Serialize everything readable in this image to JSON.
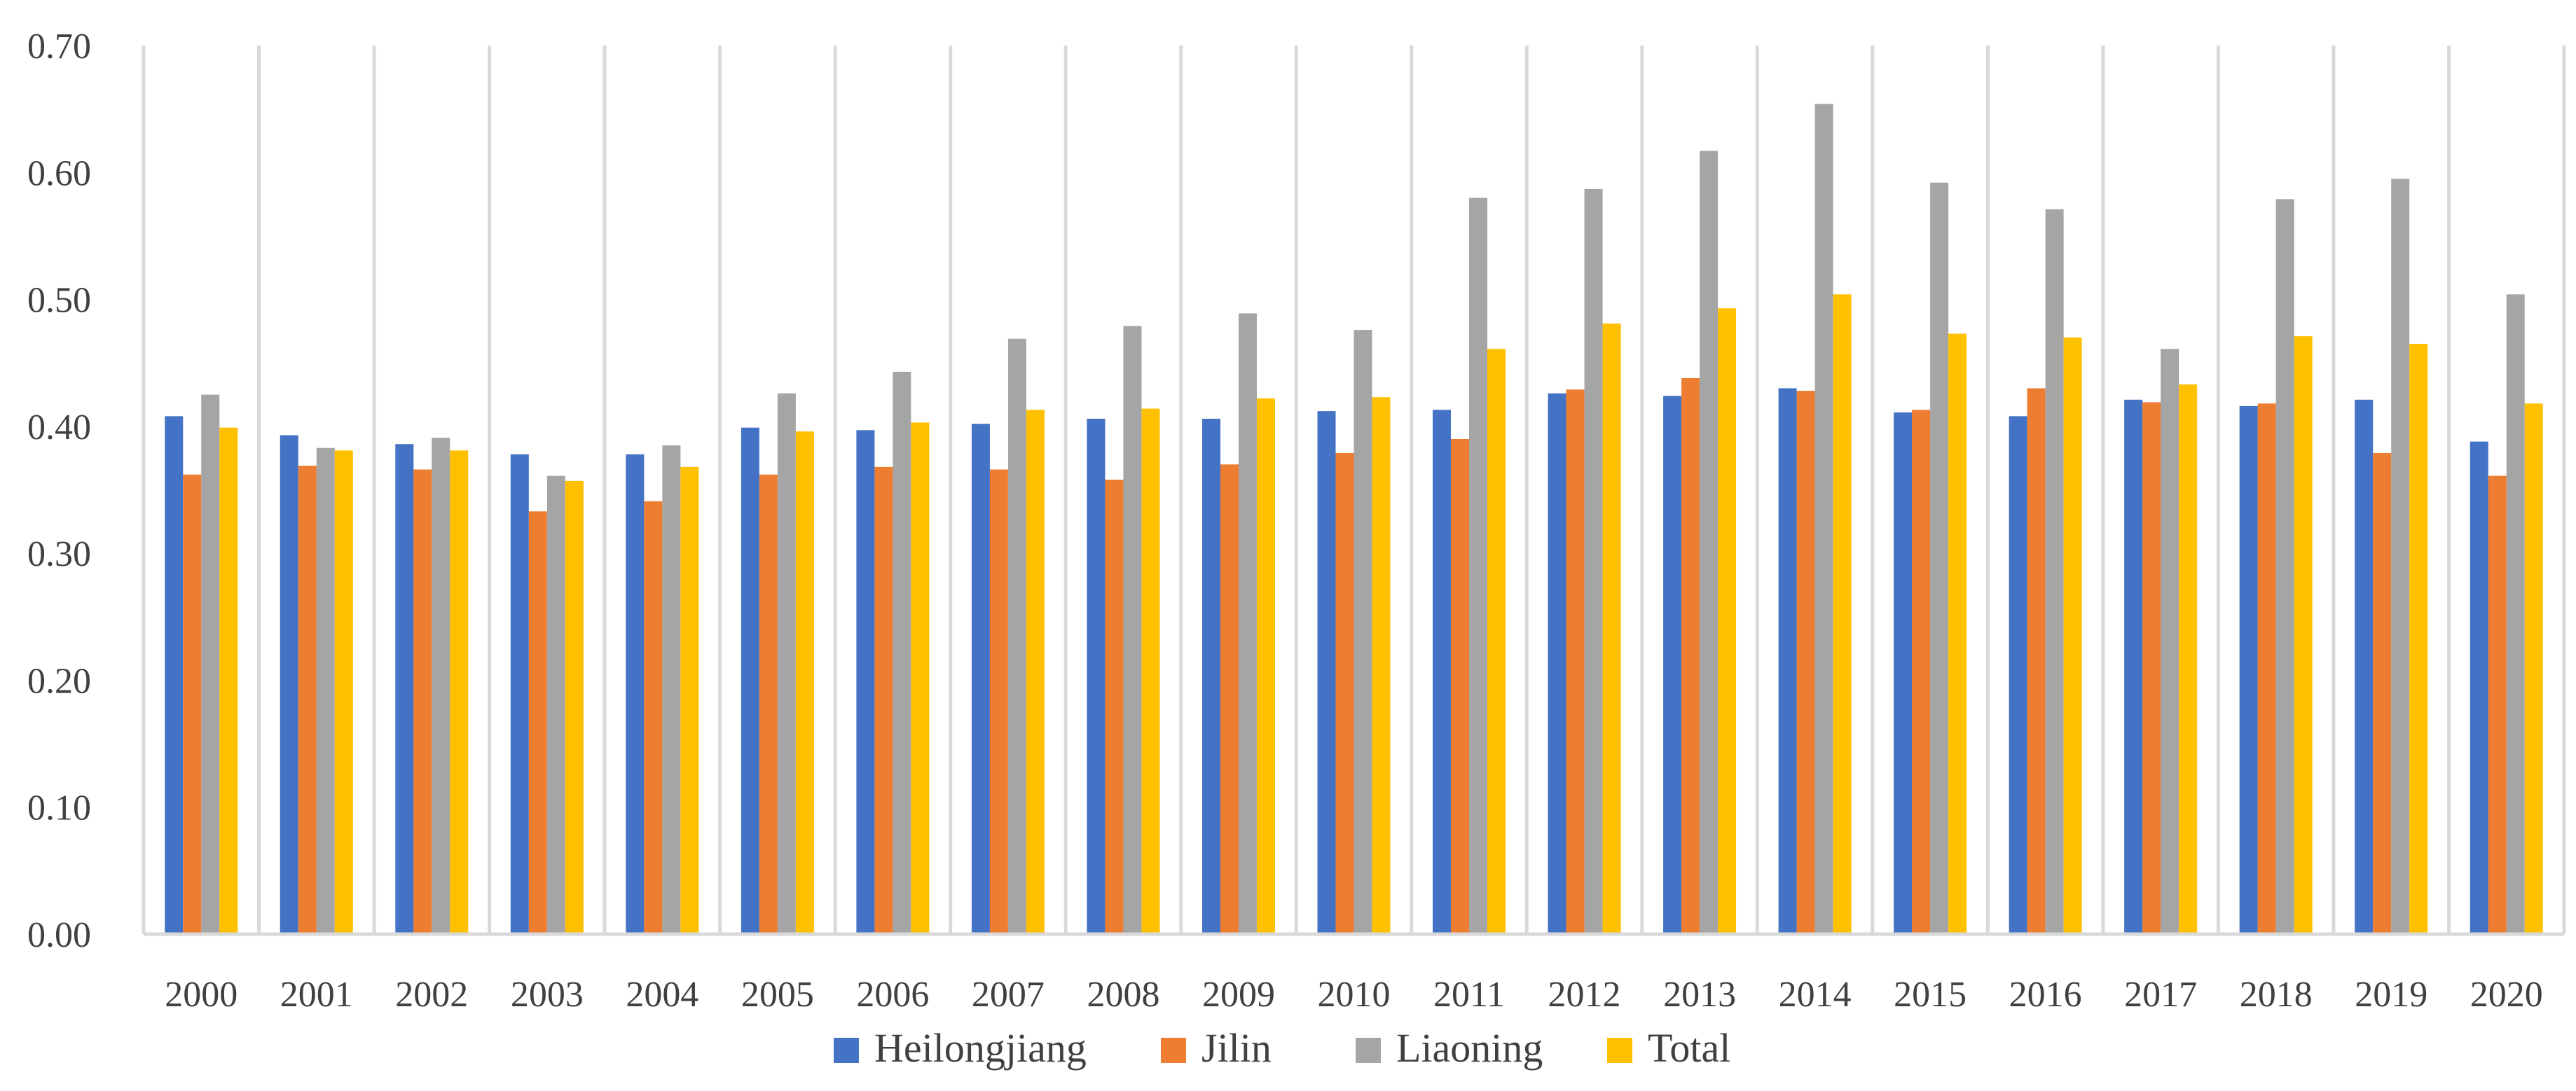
{
  "chart_data": {
    "type": "bar",
    "title": "",
    "xlabel": "",
    "ylabel": "",
    "ylim": [
      0,
      0.7
    ],
    "yticks": [
      "0.00",
      "0.10",
      "0.20",
      "0.30",
      "0.40",
      "0.50",
      "0.60",
      "0.70"
    ],
    "categories": [
      "2000",
      "2001",
      "2002",
      "2003",
      "2004",
      "2005",
      "2006",
      "2007",
      "2008",
      "2009",
      "2010",
      "2011",
      "2012",
      "2013",
      "2014",
      "2015",
      "2016",
      "2017",
      "2018",
      "2019",
      "2020"
    ],
    "grid": "vertical category separators",
    "legend_position": "bottom",
    "series": [
      {
        "name": "Heilongjiang",
        "color": "#4472C4",
        "values": [
          0.408,
          0.393,
          0.386,
          0.378,
          0.378,
          0.399,
          0.397,
          0.402,
          0.406,
          0.406,
          0.412,
          0.413,
          0.426,
          0.424,
          0.43,
          0.411,
          0.408,
          0.421,
          0.416,
          0.421,
          0.388
        ]
      },
      {
        "name": "Jilin",
        "color": "#ED7D31",
        "values": [
          0.362,
          0.369,
          0.366,
          0.333,
          0.341,
          0.362,
          0.368,
          0.366,
          0.358,
          0.37,
          0.379,
          0.39,
          0.429,
          0.438,
          0.428,
          0.413,
          0.43,
          0.419,
          0.418,
          0.379,
          0.361
        ]
      },
      {
        "name": "Liaoning",
        "color": "#A5A5A5",
        "values": [
          0.425,
          0.383,
          0.391,
          0.361,
          0.385,
          0.426,
          0.443,
          0.469,
          0.479,
          0.489,
          0.476,
          0.58,
          0.587,
          0.617,
          0.654,
          0.592,
          0.571,
          0.461,
          0.579,
          0.595,
          0.504
        ]
      },
      {
        "name": "Total",
        "color": "#FFC000",
        "values": [
          0.399,
          0.381,
          0.381,
          0.357,
          0.368,
          0.396,
          0.403,
          0.413,
          0.414,
          0.422,
          0.423,
          0.461,
          0.481,
          0.493,
          0.504,
          0.473,
          0.47,
          0.433,
          0.471,
          0.465,
          0.418
        ]
      }
    ]
  }
}
